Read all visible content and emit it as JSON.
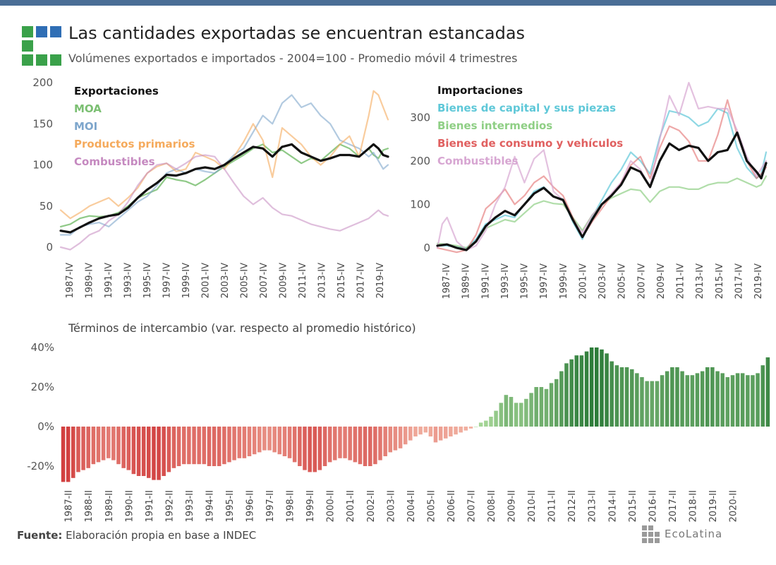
{
  "header": {
    "title": "Las cantidades exportadas se encuentran estancadas",
    "subtitle": "Volúmenes exportados e importados - 2004=100 - Promedio móvil 4 trimestres"
  },
  "footer": {
    "source_label": "Fuente:",
    "source_text": "Elaboración propia en base a INDEC",
    "brand": "EcoLatina"
  },
  "colors": {
    "topbar": "#4a6e96",
    "logo_blue": "#2f6eb5",
    "logo_green": "#3aa14a",
    "negative_dark": "#d24040",
    "negative_light": "#f2b3a3",
    "positive_light": "#a9d89a",
    "positive_dark": "#2e7d3a"
  },
  "chart_data": [
    {
      "type": "line",
      "title": "",
      "legend_title": "Exportaciones",
      "x_tick_labels": [
        "1987-IV",
        "1989-IV",
        "1991-IV",
        "1993-IV",
        "1995-IV",
        "1997-IV",
        "1999-IV",
        "2001-IV",
        "2003-IV",
        "2005-IV",
        "2007-IV",
        "2009-IV",
        "2011-IV",
        "2013-IV",
        "2015-IV",
        "2017-IV",
        "2019-IV"
      ],
      "x_range": [
        1987,
        2021
      ],
      "y_ticks": [
        0,
        50,
        100,
        150,
        200
      ],
      "ylim": [
        0,
        200
      ],
      "legend_position": "top-left",
      "series": [
        {
          "name": "MOA",
          "color": "#7bbf72",
          "width": 2.2,
          "opacity": 0.85,
          "x": [
            1987,
            1988,
            1989,
            1990,
            1991,
            1992,
            1993,
            1994,
            1995,
            1996,
            1997,
            1998,
            1999,
            2000,
            2001,
            2002,
            2003,
            2004,
            2005,
            2006,
            2007,
            2008,
            2009,
            2010,
            2011,
            2012,
            2013,
            2014,
            2015,
            2016,
            2017,
            2018,
            2019,
            2019.5,
            2020,
            2020.5,
            2021
          ],
          "values": [
            25,
            28,
            35,
            38,
            37,
            38,
            42,
            50,
            60,
            65,
            70,
            85,
            82,
            80,
            75,
            82,
            90,
            98,
            105,
            112,
            120,
            125,
            115,
            118,
            110,
            102,
            108,
            105,
            115,
            125,
            120,
            110,
            120,
            112,
            108,
            118,
            120
          ]
        },
        {
          "name": "MOI",
          "color": "#7ea6cc",
          "width": 2.2,
          "opacity": 0.6,
          "x": [
            1987,
            1988,
            1989,
            1990,
            1991,
            1992,
            1993,
            1994,
            1995,
            1996,
            1997,
            1998,
            1999,
            2000,
            2001,
            2002,
            2003,
            2004,
            2005,
            2006,
            2007,
            2008,
            2009,
            2010,
            2011,
            2012,
            2013,
            2014,
            2015,
            2016,
            2017,
            2018,
            2019,
            2019.5,
            2020,
            2020.5,
            2021
          ],
          "values": [
            15,
            15,
            25,
            28,
            30,
            25,
            35,
            45,
            55,
            62,
            75,
            90,
            95,
            90,
            95,
            92,
            90,
            100,
            112,
            120,
            140,
            160,
            150,
            175,
            185,
            170,
            175,
            160,
            150,
            130,
            125,
            120,
            110,
            115,
            105,
            95,
            100
          ]
        },
        {
          "name": "Productos primarios",
          "color": "#f5aa5c",
          "width": 2.2,
          "opacity": 0.6,
          "x": [
            1987,
            1988,
            1989,
            1990,
            1991,
            1992,
            1993,
            1994,
            1995,
            1996,
            1997,
            1998,
            1999,
            2000,
            2001,
            2002,
            2003,
            2004,
            2005,
            2006,
            2007,
            2008,
            2009,
            2010,
            2011,
            2012,
            2013,
            2014,
            2015,
            2016,
            2017,
            2018,
            2019,
            2019.5,
            2020,
            2020.5,
            2021
          ],
          "values": [
            45,
            35,
            42,
            50,
            55,
            60,
            50,
            60,
            72,
            90,
            98,
            102,
            92,
            95,
            115,
            110,
            105,
            95,
            110,
            128,
            150,
            130,
            85,
            145,
            135,
            125,
            110,
            100,
            110,
            125,
            135,
            110,
            160,
            190,
            185,
            170,
            155
          ]
        },
        {
          "name": "Combustibles",
          "color": "#c589c0",
          "width": 2.2,
          "opacity": 0.55,
          "x": [
            1987,
            1988,
            1989,
            1990,
            1991,
            1992,
            1993,
            1994,
            1995,
            1996,
            1997,
            1998,
            1999,
            2000,
            2001,
            2002,
            2003,
            2004,
            2005,
            2006,
            2007,
            2008,
            2009,
            2010,
            2011,
            2012,
            2013,
            2014,
            2015,
            2016,
            2017,
            2018,
            2019,
            2019.5,
            2020,
            2020.5,
            2021
          ],
          "values": [
            0,
            -3,
            5,
            15,
            20,
            32,
            40,
            55,
            75,
            90,
            100,
            102,
            95,
            102,
            110,
            112,
            110,
            95,
            78,
            62,
            52,
            60,
            48,
            40,
            38,
            33,
            28,
            25,
            22,
            20,
            25,
            30,
            35,
            40,
            45,
            40,
            38
          ]
        },
        {
          "name": "Exportaciones",
          "color": "#111111",
          "width": 3.2,
          "opacity": 1,
          "x": [
            1987,
            1988,
            1989,
            1990,
            1991,
            1992,
            1993,
            1994,
            1995,
            1996,
            1997,
            1998,
            1999,
            2000,
            2001,
            2002,
            2003,
            2004,
            2005,
            2006,
            2007,
            2008,
            2009,
            2010,
            2011,
            2012,
            2013,
            2014,
            2015,
            2016,
            2017,
            2018,
            2019,
            2019.5,
            2020,
            2020.5,
            2021
          ],
          "values": [
            20,
            18,
            24,
            30,
            35,
            38,
            40,
            48,
            60,
            70,
            78,
            88,
            87,
            90,
            95,
            97,
            95,
            100,
            108,
            115,
            122,
            120,
            110,
            122,
            125,
            115,
            110,
            105,
            108,
            112,
            112,
            110,
            120,
            125,
            120,
            112,
            110
          ]
        }
      ]
    },
    {
      "type": "line",
      "title": "",
      "legend_title": "Importaciones",
      "x_tick_labels": [
        "1987-IV",
        "1989-IV",
        "1991-IV",
        "1993-IV",
        "1995-IV",
        "1997-IV",
        "1999-IV",
        "2001-IV",
        "2003-IV",
        "2005-IV",
        "2007-IV",
        "2009-IV",
        "2011-IV",
        "2013-IV",
        "2015-IV",
        "2017-IV",
        "2019-IV"
      ],
      "x_range": [
        1987,
        2021
      ],
      "y_ticks": [
        0,
        100,
        200,
        300
      ],
      "ylim": [
        0,
        380
      ],
      "legend_position": "top-left",
      "series": [
        {
          "name": "Bienes de capital y sus piezas",
          "color": "#5fc8d8",
          "width": 2.2,
          "opacity": 0.7,
          "x": [
            1987,
            1988,
            1989,
            1990,
            1991,
            1992,
            1993,
            1994,
            1995,
            1996,
            1997,
            1998,
            1999,
            2000,
            2001,
            2002,
            2003,
            2004,
            2005,
            2006,
            2007,
            2008,
            2009,
            2010,
            2011,
            2012,
            2013,
            2014,
            2015,
            2016,
            2017,
            2018,
            2019,
            2020,
            2020.5,
            2021
          ],
          "values": [
            5,
            5,
            2,
            0,
            20,
            55,
            65,
            75,
            70,
            100,
            130,
            140,
            118,
            112,
            60,
            20,
            70,
            110,
            150,
            180,
            220,
            200,
            170,
            255,
            315,
            310,
            300,
            280,
            290,
            320,
            310,
            230,
            185,
            160,
            170,
            220
          ]
        },
        {
          "name": "Bienes intermedios",
          "color": "#8fcf85",
          "width": 2.2,
          "opacity": 0.7,
          "x": [
            1987,
            1988,
            1989,
            1990,
            1991,
            1992,
            1993,
            1994,
            1995,
            1996,
            1997,
            1998,
            1999,
            2000,
            2001,
            2002,
            2003,
            2004,
            2005,
            2006,
            2007,
            2008,
            2009,
            2010,
            2011,
            2012,
            2013,
            2014,
            2015,
            2016,
            2017,
            2018,
            2019,
            2020,
            2020.5,
            2021
          ],
          "values": [
            10,
            8,
            5,
            0,
            15,
            45,
            55,
            65,
            60,
            80,
            100,
            108,
            102,
            100,
            70,
            40,
            75,
            100,
            115,
            125,
            135,
            132,
            105,
            130,
            140,
            140,
            135,
            135,
            145,
            150,
            150,
            160,
            150,
            140,
            145,
            165
          ]
        },
        {
          "name": "Bienes de consumo y vehículos",
          "color": "#e06060",
          "width": 2.2,
          "opacity": 0.55,
          "x": [
            1987,
            1988,
            1989,
            1990,
            1991,
            1992,
            1993,
            1994,
            1995,
            1996,
            1997,
            1998,
            1999,
            2000,
            2001,
            2002,
            2003,
            2004,
            2005,
            2006,
            2007,
            2008,
            2009,
            2010,
            2011,
            2012,
            2013,
            2014,
            2015,
            2016,
            2017,
            2018,
            2019,
            2020,
            2020.5,
            2021
          ],
          "values": [
            0,
            -5,
            -10,
            -5,
            30,
            90,
            110,
            135,
            100,
            120,
            150,
            165,
            140,
            120,
            70,
            25,
            60,
            90,
            120,
            150,
            190,
            210,
            160,
            230,
            280,
            270,
            245,
            200,
            200,
            260,
            340,
            260,
            200,
            160,
            170,
            185
          ]
        },
        {
          "name": "Combustibles",
          "color": "#d7a6d2",
          "width": 2.2,
          "opacity": 0.7,
          "x": [
            1987,
            1987.5,
            1988,
            1989,
            1990,
            1991,
            1992,
            1993,
            1994,
            1995,
            1996,
            1997,
            1998,
            1999,
            2000,
            2001,
            2002,
            2003,
            2004,
            2005,
            2006,
            2007,
            2008,
            2009,
            2010,
            2011,
            2012,
            2013,
            2014,
            2015,
            2016,
            2017,
            2018,
            2019,
            2020,
            2021
          ],
          "values": [
            0,
            55,
            70,
            15,
            -5,
            5,
            40,
            100,
            140,
            210,
            150,
            205,
            225,
            130,
            110,
            65,
            35,
            75,
            100,
            125,
            150,
            200,
            180,
            140,
            250,
            350,
            305,
            380,
            320,
            325,
            320,
            320,
            270,
            210,
            165,
            200
          ]
        },
        {
          "name": "Importaciones",
          "color": "#111111",
          "width": 3.2,
          "opacity": 1,
          "x": [
            1987,
            1988,
            1989,
            1990,
            1991,
            1992,
            1993,
            1994,
            1995,
            1996,
            1997,
            1998,
            1999,
            2000,
            2001,
            2002,
            2003,
            2004,
            2005,
            2006,
            2007,
            2008,
            2009,
            2010,
            2011,
            2012,
            2013,
            2014,
            2015,
            2016,
            2017,
            2018,
            2019,
            2020,
            2020.5,
            2021
          ],
          "values": [
            5,
            8,
            0,
            -5,
            15,
            50,
            70,
            85,
            75,
            100,
            125,
            138,
            118,
            110,
            65,
            25,
            65,
            100,
            120,
            145,
            185,
            175,
            140,
            200,
            240,
            225,
            235,
            230,
            200,
            220,
            225,
            265,
            200,
            175,
            160,
            195
          ]
        }
      ]
    },
    {
      "type": "bar",
      "title": "Términos de intercambio (var. respecto al promedio histórico)",
      "x_tick_labels": [
        "1987-II",
        "1988-II",
        "1989-II",
        "1990-II",
        "1991-II",
        "1992-II",
        "1993-II",
        "1994-II",
        "1995-II",
        "1996-II",
        "1997-II",
        "1998-II",
        "1999-II",
        "2000-II",
        "2001-II",
        "2002-II",
        "2003-II",
        "2004-II",
        "2005-II",
        "2006-II",
        "2007-II",
        "2008-II",
        "2009-II",
        "2010-II",
        "2011-II",
        "2012-II",
        "2013-II",
        "2014-II",
        "2015-II",
        "2016-II",
        "2017-II",
        "2018-II",
        "2019-II",
        "2020-II"
      ],
      "y_ticks": [
        -20,
        0,
        20,
        40
      ],
      "y_tick_labels": [
        "-20%",
        "0%",
        "20%",
        "40%"
      ],
      "ylim": [
        -30,
        45
      ],
      "unit": "%",
      "values": [
        -28,
        -28,
        -26,
        -23,
        -22,
        -21,
        -19,
        -18,
        -17,
        -16,
        -17,
        -19,
        -21,
        -22,
        -24,
        -25,
        -25,
        -26,
        -27,
        -27,
        -25,
        -23,
        -21,
        -20,
        -19,
        -19,
        -19,
        -19,
        -19,
        -20,
        -20,
        -20,
        -19,
        -18,
        -17,
        -16,
        -16,
        -15,
        -14,
        -13,
        -12,
        -12,
        -13,
        -14,
        -15,
        -16,
        -18,
        -20,
        -22,
        -23,
        -23,
        -22,
        -20,
        -18,
        -17,
        -16,
        -16,
        -17,
        -18,
        -19,
        -20,
        -20,
        -19,
        -17,
        -15,
        -13,
        -12,
        -11,
        -9,
        -7,
        -5,
        -4,
        -3,
        -5,
        -8,
        -7,
        -6,
        -5,
        -4,
        -3,
        -2,
        -1,
        0,
        2,
        3,
        5,
        8,
        12,
        16,
        15,
        12,
        12,
        14,
        17,
        20,
        20,
        19,
        22,
        24,
        28,
        32,
        34,
        36,
        36,
        38,
        40,
        40,
        39,
        37,
        33,
        31,
        30,
        30,
        29,
        27,
        25,
        23,
        23,
        23,
        26,
        28,
        30,
        30,
        28,
        26,
        26,
        27,
        28,
        30,
        30,
        28,
        27,
        25,
        26,
        27,
        27,
        26,
        26,
        27,
        31,
        35
      ]
    }
  ]
}
